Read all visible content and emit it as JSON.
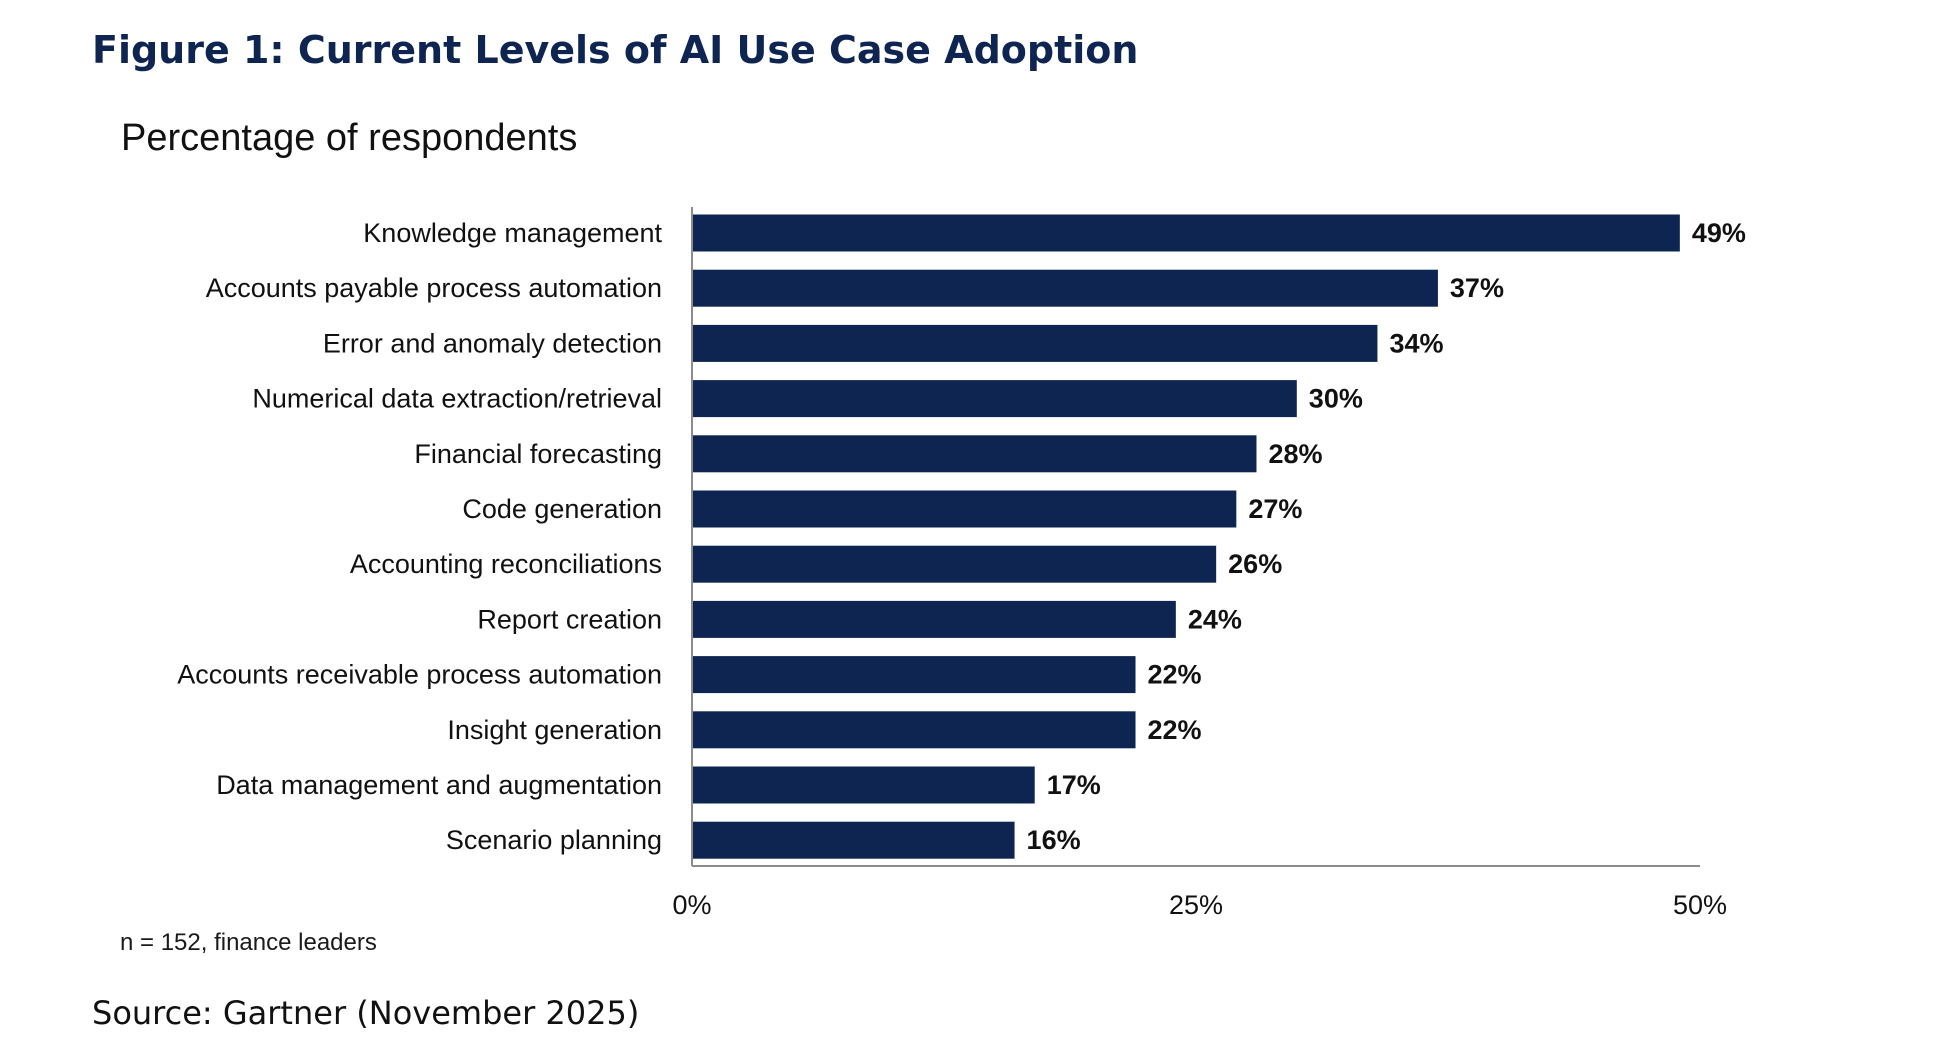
{
  "figure": {
    "title": "Figure 1: Current Levels of AI Use Case Adoption",
    "footnote": "n = 152, finance leaders",
    "source": "Source: Gartner (November 2025)"
  },
  "colors": {
    "bar": "#0e2552",
    "title": "#0e2552",
    "text": "#111111",
    "axis": "#8c8c8c"
  },
  "chart_data": {
    "type": "bar",
    "orientation": "horizontal",
    "title": "Percentage of respondents",
    "xlabel": "",
    "ylabel": "",
    "categories": [
      "Knowledge management",
      "Accounts payable process automation",
      "Error and anomaly detection",
      "Numerical data extraction/retrieval",
      "Financial forecasting",
      "Code generation",
      "Accounting reconciliations",
      "Report creation",
      "Accounts receivable process automation",
      "Insight generation",
      "Data management and augmentation",
      "Scenario planning"
    ],
    "values": [
      49,
      37,
      34,
      30,
      28,
      27,
      26,
      24,
      22,
      22,
      17,
      16
    ],
    "value_labels": [
      "49%",
      "37%",
      "34%",
      "30%",
      "28%",
      "27%",
      "26%",
      "24%",
      "22%",
      "22%",
      "17%",
      "16%"
    ],
    "xlim": [
      0,
      50
    ],
    "xticks": [
      0,
      25,
      50
    ],
    "xtick_labels": [
      "0%",
      "25%",
      "50%"
    ],
    "grid": false,
    "legend": "none"
  }
}
